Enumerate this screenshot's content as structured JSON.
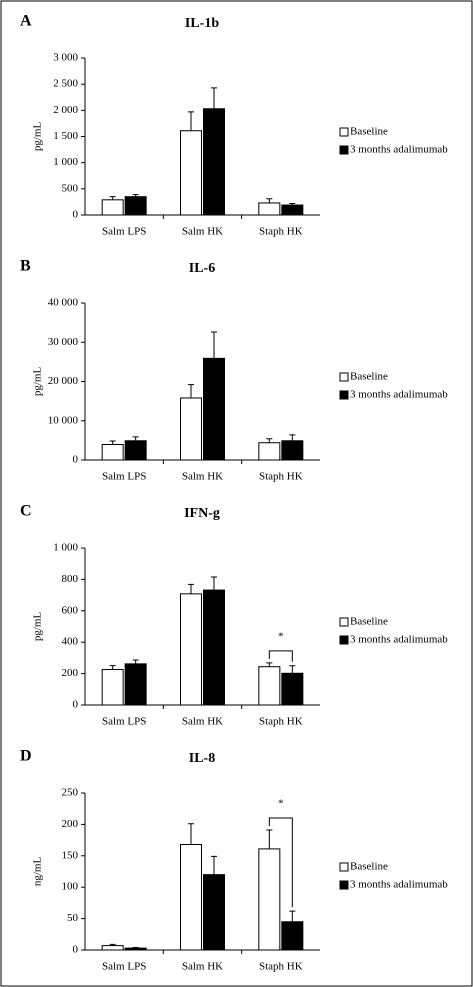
{
  "chart_data": [
    {
      "type": "bar",
      "panel": "A",
      "title": "IL-1b",
      "y_label": "pg/mL",
      "categories": [
        "Salm LPS",
        "Salm HK",
        "Staph HK"
      ],
      "series": [
        {
          "name": "Baseline",
          "color": "#ffffff",
          "values": [
            290,
            1610,
            230
          ],
          "errors": [
            60,
            360,
            80
          ]
        },
        {
          "name": "3 months adalimumab",
          "color": "#000000",
          "values": [
            350,
            2030,
            190
          ],
          "errors": [
            40,
            400,
            30
          ]
        }
      ],
      "ylim": [
        0,
        3000
      ],
      "yticks": [
        0,
        500,
        {
          "value": 1000,
          "label": "1 000"
        },
        {
          "value": 1500,
          "label": "1 500"
        },
        {
          "value": 2000,
          "label": "2 000"
        },
        {
          "value": 2500,
          "label": "2 500"
        },
        {
          "value": 3000,
          "label": "3 000"
        }
      ]
    },
    {
      "type": "bar",
      "panel": "B",
      "title": "IL-6",
      "y_label": "pg/mL",
      "categories": [
        "Salm LPS",
        "Salm HK",
        "Staph HK"
      ],
      "series": [
        {
          "name": "Baseline",
          "color": "#ffffff",
          "values": [
            3950,
            15800,
            4400
          ],
          "errors": [
            900,
            3400,
            1000
          ]
        },
        {
          "name": "3 months adalimumab",
          "color": "#000000",
          "values": [
            4900,
            25900,
            4900
          ],
          "errors": [
            1000,
            6700,
            1500
          ]
        }
      ],
      "ylim": [
        0,
        40000
      ],
      "yticks": [
        0,
        {
          "value": 10000,
          "label": "10 000"
        },
        {
          "value": 20000,
          "label": "20 000"
        },
        {
          "value": 30000,
          "label": "30 000"
        },
        {
          "value": 40000,
          "label": "40 000"
        }
      ]
    },
    {
      "type": "bar",
      "panel": "C",
      "title": "IFN-g",
      "y_label": "pg/mL",
      "annotation": "*",
      "categories": [
        "Salm LPS",
        "Salm HK",
        "Staph HK"
      ],
      "series": [
        {
          "name": "Baseline",
          "color": "#ffffff",
          "values": [
            226,
            708,
            244
          ],
          "errors": [
            25,
            60,
            24
          ]
        },
        {
          "name": "3 months adalimumab",
          "color": "#000000",
          "values": [
            262,
            732,
            202
          ],
          "errors": [
            25,
            83,
            48
          ]
        }
      ],
      "ylim": [
        0,
        1000
      ],
      "yticks": [
        0,
        200,
        400,
        600,
        800,
        {
          "value": 1000,
          "label": "1 000"
        }
      ]
    },
    {
      "type": "bar",
      "panel": "D",
      "title": "IL-8",
      "y_label": "ng/mL",
      "annotation": "*",
      "categories": [
        "Salm LPS",
        "Salm HK",
        "Staph HK"
      ],
      "series": [
        {
          "name": "Baseline",
          "color": "#ffffff",
          "values": [
            7,
            168,
            161
          ],
          "errors": [
            2,
            33,
            30
          ]
        },
        {
          "name": "3 months adalimumab",
          "color": "#000000",
          "values": [
            3,
            120,
            45
          ],
          "errors": [
            1,
            29,
            17
          ]
        }
      ],
      "ylim": [
        0,
        250
      ],
      "yticks": [
        0,
        50,
        100,
        150,
        200,
        250
      ]
    }
  ]
}
